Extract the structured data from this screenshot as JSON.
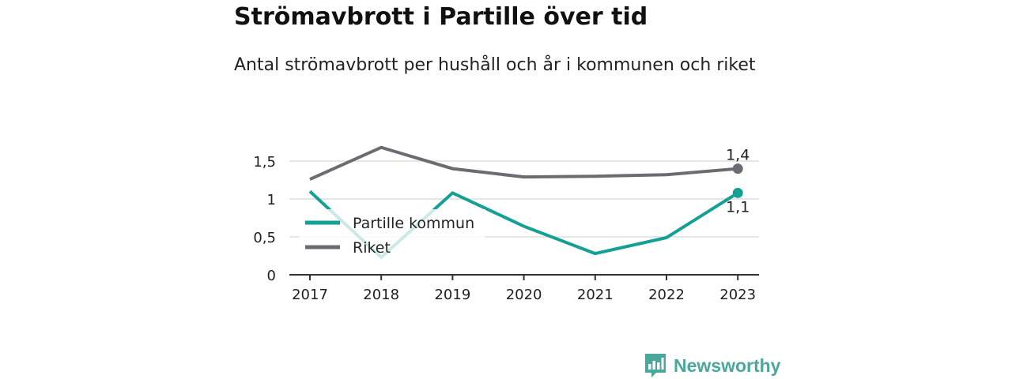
{
  "title": "Strömavbrott i Partille över tid",
  "subtitle": "Antal strömavbrott per hushåll och år i kommunen och riket",
  "logo_text": "Newsworthy",
  "colors": {
    "partille": "#14a094",
    "riket": "#6b6b72",
    "grid": "#dddddd",
    "axis": "#333333"
  },
  "chart_data": {
    "type": "line",
    "x": [
      "2017",
      "2018",
      "2019",
      "2020",
      "2021",
      "2022",
      "2023"
    ],
    "ylim": [
      0,
      1.75
    ],
    "yticks": [
      {
        "value": 0,
        "label": "0"
      },
      {
        "value": 0.5,
        "label": "0,5"
      },
      {
        "value": 1,
        "label": "1"
      },
      {
        "value": 1.5,
        "label": "1,5"
      }
    ],
    "grid": true,
    "legend_position": "inside-left",
    "series": [
      {
        "name": "Partille kommun",
        "values": [
          1.1,
          0.23,
          1.08,
          0.64,
          0.28,
          0.49,
          1.08
        ],
        "end_label": "1,1"
      },
      {
        "name": "Riket",
        "values": [
          1.26,
          1.68,
          1.4,
          1.29,
          1.3,
          1.32,
          1.4
        ],
        "end_label": "1,4"
      }
    ]
  }
}
